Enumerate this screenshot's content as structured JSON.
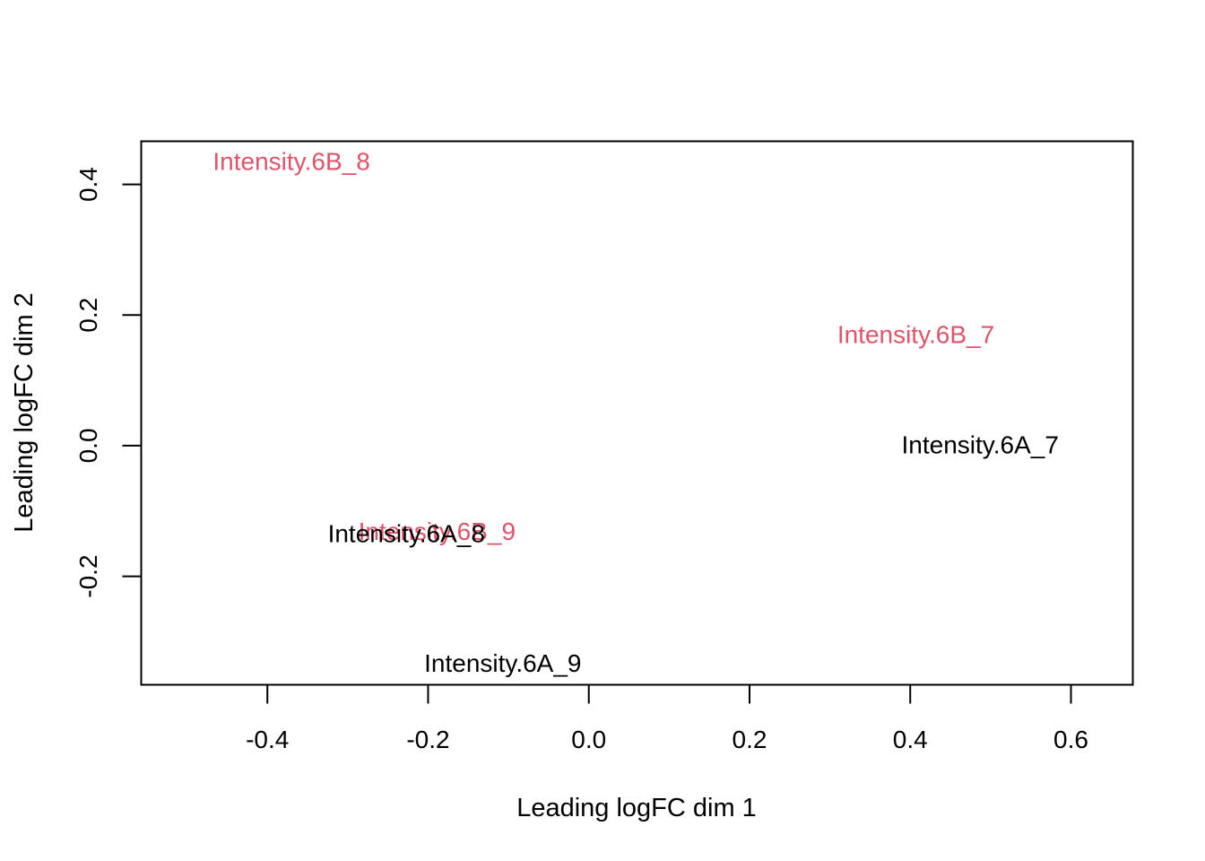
{
  "chart_data": {
    "type": "scatter",
    "title": "",
    "xlabel": "Leading logFC dim 1",
    "ylabel": "Leading logFC dim 2",
    "xlim": [
      -0.557,
      0.677
    ],
    "ylim": [
      -0.366,
      0.466
    ],
    "x_ticks": [
      -0.4,
      -0.2,
      0.0,
      0.2,
      0.4,
      0.6
    ],
    "x_tick_labels": [
      "-0.4",
      "-0.2",
      "0.0",
      "0.2",
      "0.4",
      "0.6"
    ],
    "y_ticks": [
      -0.2,
      0.0,
      0.2,
      0.4
    ],
    "y_tick_labels": [
      "-0.2",
      "0.0",
      "0.2",
      "0.4"
    ],
    "grid": false,
    "legend": "none",
    "colors": {
      "6A": "#000000",
      "6B": "#DF536B"
    },
    "points": [
      {
        "label": "Intensity.6B_8",
        "group": "6B",
        "x": -0.37,
        "y": 0.435
      },
      {
        "label": "Intensity.6B_7",
        "group": "6B",
        "x": 0.407,
        "y": 0.17
      },
      {
        "label": "Intensity.6A_7",
        "group": "6A",
        "x": 0.487,
        "y": 0.001
      },
      {
        "label": "Intensity.6B_9",
        "group": "6B",
        "x": -0.189,
        "y": -0.131
      },
      {
        "label": "Intensity.6A_8",
        "group": "6A",
        "x": -0.227,
        "y": -0.135
      },
      {
        "label": "Intensity.6A_9",
        "group": "6A",
        "x": -0.107,
        "y": -0.333
      }
    ]
  }
}
